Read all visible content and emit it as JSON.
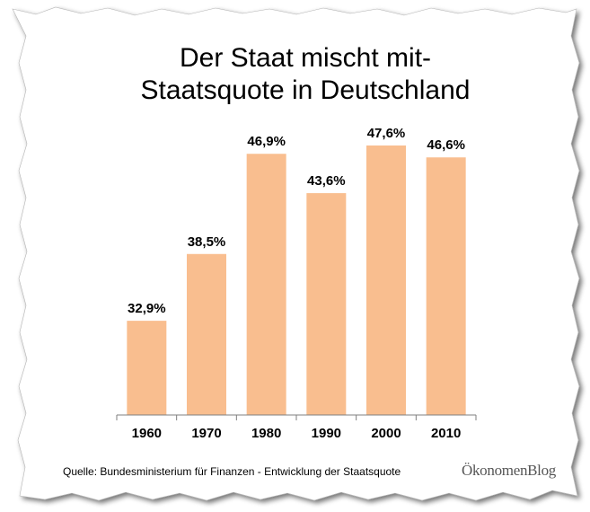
{
  "title_line1": "Der Staat mischt mit-",
  "title_line2": "Staatsquote in Deutschland",
  "source": "Quelle: Bundesministerium für Finanzen - Entwicklung der Staatsquote",
  "brand": "ÖkonomenBlog",
  "colors": {
    "bar": "#F9BE8F",
    "axis": "#7f7f7f",
    "text": "#000000"
  },
  "chart_data": {
    "type": "bar",
    "title": "Der Staat mischt mit- Staatsquote in Deutschland",
    "categories": [
      "1960",
      "1970",
      "1980",
      "1990",
      "2000",
      "2010"
    ],
    "values": [
      32.9,
      38.5,
      46.9,
      43.6,
      47.6,
      46.6
    ],
    "data_labels": [
      "32,9%",
      "38,5%",
      "46,9%",
      "43,6%",
      "47,6%",
      "46,6%"
    ],
    "ylim": [
      25,
      48.5
    ],
    "grid": false,
    "legend": "none"
  }
}
